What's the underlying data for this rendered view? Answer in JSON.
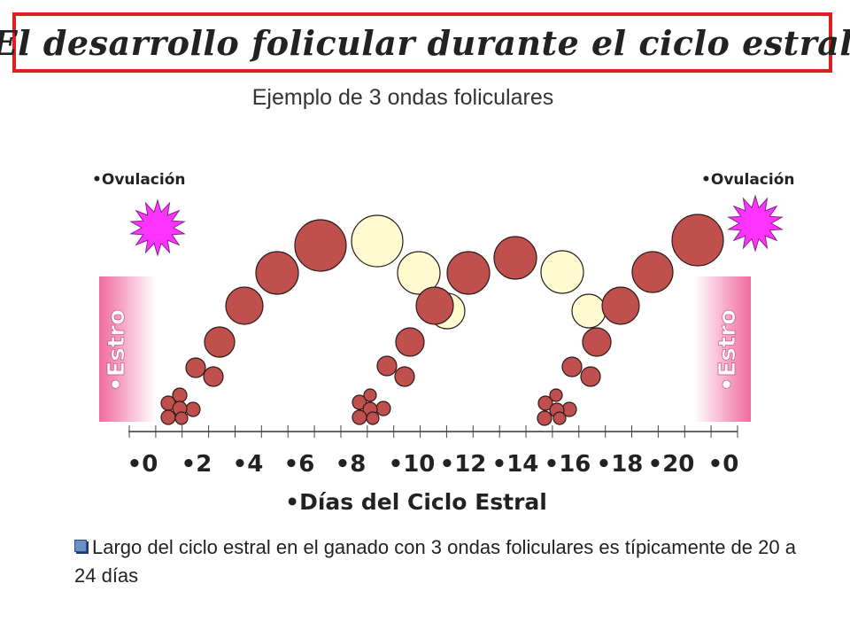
{
  "title": "El desarrollo folicular durante el ciclo estral",
  "subtitle": "Ejemplo de 3 ondas foliculares",
  "ovulation_label": "•Ovulación",
  "estro_label": "•Estro",
  "x_axis": {
    "label": "•Días del Ciclo Estral",
    "ticks": [
      "•0",
      "•2",
      "•4",
      "•6",
      "•8",
      "•10",
      "•12",
      "•14",
      "•16",
      "•18",
      "•20",
      "•0"
    ]
  },
  "note": "Largo del ciclo estral en el ganado con 3 ondas foliculares es típicamente de 20 a 24 días",
  "colors": {
    "title_border": "#e02020",
    "follicle_dominant": "#c0504d",
    "follicle_regressing": "#fdfbcf",
    "ovulation_star": "#ff33ff",
    "estro_band": "#f06a9e"
  },
  "icons": {
    "ovulation": "starburst-icon",
    "bullet": "square-bullet-icon"
  }
}
